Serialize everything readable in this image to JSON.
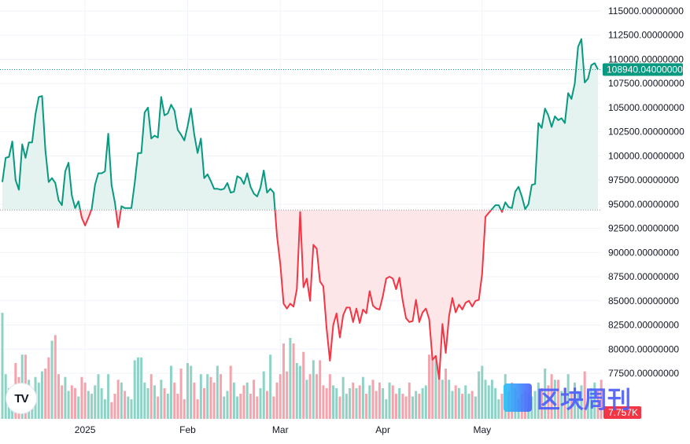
{
  "chart_data": {
    "type": "area",
    "baseline": 94400,
    "last_price_label": "108940.04000000",
    "last_price": 108940.04,
    "volume_badge": "7.757K",
    "y_ticks": [
      "115000.00000000",
      "112500.00000000",
      "110000.00000000",
      "107500.00000000",
      "105000.00000000",
      "102500.00000000",
      "100000.00000000",
      "97500.00000000",
      "95000.00000000",
      "92500.00000000",
      "90000.00000000",
      "87500.00000000",
      "85000.00000000",
      "82500.00000000",
      "80000.00000000",
      "77500.00000000"
    ],
    "x_ticks": [
      "2025",
      "Feb",
      "Mar",
      "Apr",
      "May"
    ],
    "ylim": [
      75500,
      116500
    ],
    "price": [
      97300,
      99800,
      99900,
      101500,
      97500,
      96500,
      101200,
      99800,
      101400,
      101400,
      104300,
      106100,
      106200,
      100600,
      97300,
      97700,
      97200,
      95400,
      94900,
      98400,
      99300,
      95900,
      94600,
      95300,
      93600,
      92800,
      93600,
      94500,
      97000,
      98200,
      98200,
      98400,
      102300,
      97000,
      95200,
      92600,
      94800,
      94600,
      94600,
      94600,
      97200,
      100300,
      100300,
      104500,
      105000,
      101800,
      102100,
      101900,
      106100,
      104200,
      104400,
      105300,
      104700,
      102700,
      102200,
      101600,
      103100,
      104900,
      102200,
      100300,
      101800,
      97700,
      98100,
      97400,
      96600,
      96600,
      96500,
      96600,
      97200,
      96200,
      96300,
      97900,
      97700,
      97100,
      98200,
      96800,
      96100,
      95800,
      96700,
      98500,
      96200,
      96600,
      96200,
      91700,
      88800,
      84700,
      84200,
      84700,
      84400,
      86200,
      94200,
      86400,
      87300,
      85000,
      90800,
      90400,
      87000,
      86500,
      82100,
      78800,
      82500,
      83700,
      81200,
      83500,
      84300,
      84300,
      82800,
      84200,
      82700,
      84100,
      83700,
      86000,
      84500,
      84200,
      84100,
      85500,
      87300,
      87500,
      87300,
      86200,
      87400,
      85000,
      83200,
      82800,
      82900,
      85100,
      82800,
      83800,
      84200,
      83100,
      78900,
      79300,
      76900,
      82600,
      79600,
      83400,
      85300,
      83800,
      84600,
      84100,
      84800,
      85000,
      84400,
      85000,
      85100,
      87800,
      93700,
      94100,
      94500,
      94900,
      94900,
      94200,
      95200,
      94700,
      94600,
      96300,
      96800,
      95800,
      94500,
      95000,
      97000,
      97100,
      103400,
      102900,
      104900,
      104200,
      103000,
      104100,
      103700,
      103900,
      103400,
      106500,
      105900,
      107500,
      111300,
      112100,
      107600,
      108000,
      109400,
      109600,
      108940
    ],
    "volume": [
      3.8,
      1.6,
      1.1,
      0.9,
      2.0,
      1.5,
      2.3,
      2.3,
      1.4,
      1.1,
      1.5,
      1.3,
      1.7,
      1.8,
      2.2,
      2.8,
      3.0,
      1.6,
      1.2,
      1.5,
      1.0,
      1.2,
      1.1,
      0.8,
      1.5,
      1.3,
      1.0,
      0.9,
      1.2,
      1.6,
      1.1,
      0.7,
      1.6,
      0.6,
      0.9,
      1.4,
      1.3,
      1.0,
      0.8,
      0.7,
      2.1,
      2.2,
      2.2,
      1.3,
      1.1,
      1.6,
      1.2,
      0.8,
      1.4,
      1.1,
      0.9,
      1.9,
      1.3,
      0.9,
      1.8,
      0.7,
      2.0,
      1.9,
      1.3,
      0.7,
      1.6,
      1.1,
      1.6,
      1.5,
      1.3,
      1.9,
      1.6,
      0.8,
      1.0,
      1.9,
      1.3,
      0.8,
      0.9,
      1.2,
      1.3,
      0.9,
      1.4,
      0.8,
      1.1,
      1.7,
      1.0,
      2.3,
      0.8,
      1.3,
      1.6,
      2.7,
      1.7,
      2.9,
      2.7,
      2.0,
      1.9,
      2.4,
      1.4,
      1.6,
      2.1,
      1.6,
      2.1,
      1.2,
      1.1,
      1.6,
      1.2,
      1.1,
      0.8,
      1.5,
      0.9,
      1.1,
      1.3,
      1.1,
      1.2,
      1.5,
      0.9,
      1.2,
      1.4,
      1.0,
      1.3,
      1.1,
      0.7,
      1.3,
      1.2,
      0.9,
      1.1,
      0.9,
      0.8,
      1.3,
      0.8,
      1.0,
      0.9,
      1.1,
      1.2,
      2.3,
      3.1,
      2.6,
      3.5,
      1.4,
      1.8,
      1.4,
      1.0,
      1.2,
      1.1,
      0.9,
      1.2,
      0.9,
      1.0,
      0.8,
      1.7,
      1.9,
      1.4,
      1.2,
      1.4,
      1.1,
      0.7,
      0.9,
      1.6,
      1.0,
      1.3,
      1.1,
      0.7,
      0.9,
      1.0,
      0.9,
      0.8,
      1.0,
      1.3,
      1.1,
      1.8,
      1.2,
      1.6,
      1.4,
      1.4,
      1.0,
      1.1,
      1.6,
      0.9,
      1.3,
      1.0,
      1.2,
      1.7,
      1.0,
      1.1,
      1.3,
      1.0,
      1.4
    ]
  },
  "watermark_text": "区块周刊",
  "logo_text": "TV",
  "colors": {
    "up_line": "#089981",
    "down_line": "#f23645",
    "up_fill": "#e4f3ef",
    "down_fill": "#fde6e8",
    "up_volume": "#8fd3c6",
    "down_volume": "#f5a4ad",
    "badge": "#089981",
    "volume_badge": "#f23645"
  }
}
